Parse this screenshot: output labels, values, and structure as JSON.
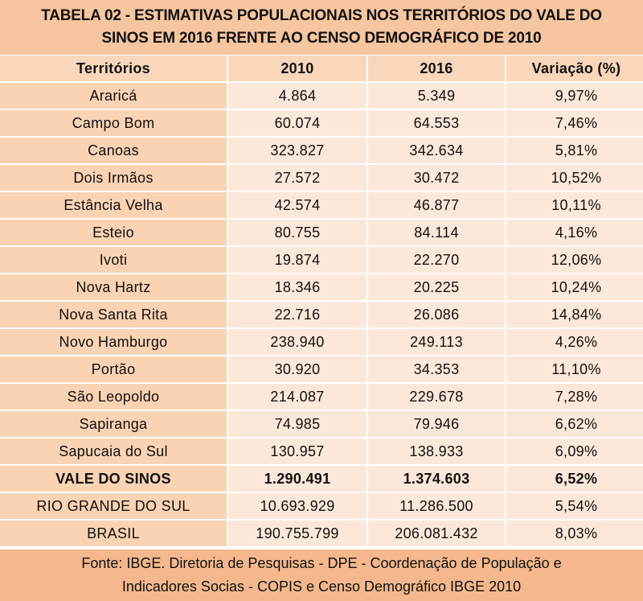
{
  "title_line1": "TABELA 02 - ESTIMATIVAS POPULACIONAIS NOS TERRITÓRIOS DO VALE DO",
  "title_line2": "SINOS EM 2016 FRENTE AO CENSO DEMOGRÁFICO DE 2010",
  "headers": [
    "Territórios",
    "2010",
    "2016",
    "Variação (%)"
  ],
  "rows": [
    [
      "Araricá",
      "4.864",
      "5.349",
      "9,97%"
    ],
    [
      "Campo Bom",
      "60.074",
      "64.553",
      "7,46%"
    ],
    [
      "Canoas",
      "323.827",
      "342.634",
      "5,81%"
    ],
    [
      "Dois Irmãos",
      "27.572",
      "30.472",
      "10,52%"
    ],
    [
      "Estância Velha",
      "42.574",
      "46.877",
      "10,11%"
    ],
    [
      "Esteio",
      "80.755",
      "84.114",
      "4,16%"
    ],
    [
      "Ivoti",
      "19.874",
      "22.270",
      "12,06%"
    ],
    [
      "Nova Hartz",
      "18.346",
      "20.225",
      "10,24%"
    ],
    [
      "Nova Santa Rita",
      "22.716",
      "26.086",
      "14,84%"
    ],
    [
      "Novo Hamburgo",
      "238.940",
      "249.113",
      "4,26%"
    ],
    [
      "Portão",
      "30.920",
      "34.353",
      "11,10%"
    ],
    [
      "São Leopoldo",
      "214.087",
      "229.678",
      "7,28%"
    ],
    [
      "Sapiranga",
      "74.985",
      "79.946",
      "6,62%"
    ],
    [
      "Sapucaia do Sul",
      "130.957",
      "138.933",
      "6,09%"
    ],
    [
      "VALE DO SINOS",
      "1.290.491",
      "1.374.603",
      "6,52%"
    ],
    [
      "RIO GRANDE DO SUL",
      "10.693.929",
      "11.286.500",
      "5,54%"
    ],
    [
      "BRASIL",
      "190.755.799",
      "206.081.432",
      "8,03%"
    ]
  ],
  "bold_row_index": 14,
  "footer_line1": "Fonte: IBGE. Diretoria de Pesquisas - DPE -  Coordenação de População e",
  "footer_line2": "Indicadores Socias - COPIS e Censo Demográfico IBGE 2010",
  "colors": {
    "title_bg": "#f6c6a0",
    "header_bg": "#fad6ba",
    "territory_bg": "#f9d3b4",
    "value_bg": "#fce8da",
    "footer_bg": "#f4b88c"
  }
}
